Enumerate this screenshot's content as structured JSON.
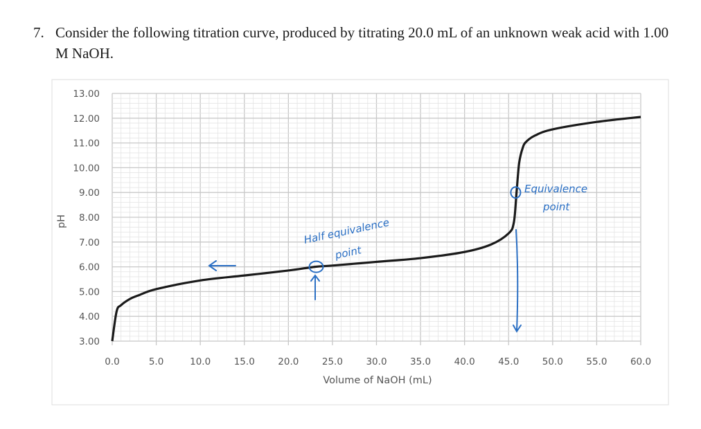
{
  "question": {
    "number": "7.",
    "text": "Consider the following titration curve, produced by titrating 20.0 mL of an unknown weak acid with 1.00 M NaOH."
  },
  "chart_data": {
    "type": "line",
    "title": "",
    "xlabel": "Volume of NaOH (mL)",
    "ylabel": "pH",
    "xlim": [
      0,
      60
    ],
    "ylim": [
      3,
      13
    ],
    "grid": true,
    "x_ticks": [
      "0.0",
      "5.0",
      "10.0",
      "15.0",
      "20.0",
      "25.0",
      "30.0",
      "35.0",
      "40.0",
      "45.0",
      "50.0",
      "55.0",
      "60.0"
    ],
    "y_ticks": [
      "3.00",
      "4.00",
      "5.00",
      "6.00",
      "7.00",
      "8.00",
      "9.00",
      "10.00",
      "11.00",
      "12.00",
      "13.00"
    ],
    "series": [
      {
        "color": "#1a1a1a",
        "x": [
          0,
          0.5,
          1,
          2,
          3,
          5,
          10,
          15,
          20,
          23,
          25,
          30,
          35,
          40,
          43,
          45,
          45.6,
          45.9,
          46.2,
          46.6,
          47,
          48,
          50,
          55,
          60
        ],
        "y": [
          3.0,
          4.2,
          4.45,
          4.7,
          4.85,
          5.1,
          5.45,
          5.65,
          5.85,
          6.0,
          6.05,
          6.2,
          6.35,
          6.6,
          6.9,
          7.35,
          7.8,
          9.0,
          10.2,
          10.8,
          11.05,
          11.3,
          11.55,
          11.85,
          12.05
        ]
      }
    ],
    "annotations": [
      {
        "text_line1": "Half equivalence",
        "text_line2": "point",
        "x": 23,
        "y": 6.0,
        "color": "#2a6fc4"
      },
      {
        "text_line1": "Equivalence",
        "text_line2": "point",
        "x": 45.8,
        "y": 9.0,
        "color": "#2a6fc4"
      }
    ]
  }
}
